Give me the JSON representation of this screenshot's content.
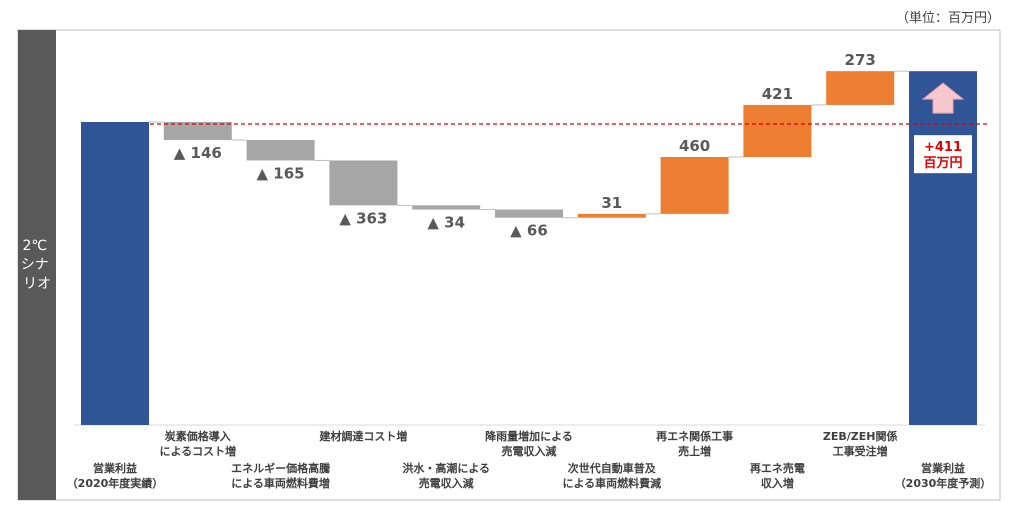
{
  "unit_label": "（単位：百万円）",
  "scenario_label": [
    "2℃",
    "シナ",
    "リオ"
  ],
  "delta_label": [
    "+411",
    "百万円"
  ],
  "colors": {
    "total": "#2F5597",
    "decrease": "#A6A6A6",
    "increase": "#ED7D31",
    "reference_line": "#E00000",
    "side_panel": "#595959",
    "arrow": "#F7C7CE"
  },
  "chart_data": {
    "type": "waterfall",
    "reference_line": "dashed, at starting operating profit level",
    "steps": [
      {
        "label": [
          "営業利益",
          "（2020年度実績）"
        ],
        "kind": "total",
        "value": null,
        "value_label": ""
      },
      {
        "label": [
          "炭素価格導入",
          "によるコスト増"
        ],
        "kind": "decrease",
        "value": -146,
        "value_label": "▲ 146"
      },
      {
        "label": [
          "エネルギー価格高騰",
          "による車両燃料費増"
        ],
        "kind": "decrease",
        "value": -165,
        "value_label": "▲ 165"
      },
      {
        "label": [
          "建材調達コスト増"
        ],
        "kind": "decrease",
        "value": -363,
        "value_label": "▲ 363"
      },
      {
        "label": [
          "洪水・高潮による",
          "売電収入減"
        ],
        "kind": "decrease",
        "value": -34,
        "value_label": "▲ 34"
      },
      {
        "label": [
          "降雨量増加による",
          "売電収入減"
        ],
        "kind": "decrease",
        "value": -66,
        "value_label": "▲ 66"
      },
      {
        "label": [
          "次世代自動車普及",
          "による車両燃料費減"
        ],
        "kind": "increase",
        "value": 31,
        "value_label": "31"
      },
      {
        "label": [
          "再エネ関係工事",
          "売上増"
        ],
        "kind": "increase",
        "value": 460,
        "value_label": "460"
      },
      {
        "label": [
          "再エネ売電",
          "収入増"
        ],
        "kind": "increase",
        "value": 421,
        "value_label": "421"
      },
      {
        "label": [
          "ZEB/ZEH関係",
          "工事受注増"
        ],
        "kind": "increase",
        "value": 273,
        "value_label": "273"
      },
      {
        "label": [
          "営業利益",
          "（2030年度予測）"
        ],
        "kind": "total",
        "value": null,
        "value_label": ""
      }
    ],
    "net_change": 411
  }
}
